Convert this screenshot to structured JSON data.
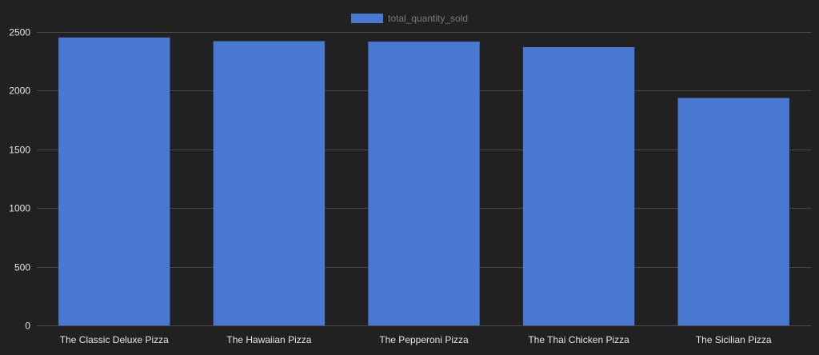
{
  "chart_data": {
    "type": "bar",
    "categories": [
      "The Classic Deluxe Pizza",
      "The Hawaiian Pizza",
      "The Pepperoni Pizza",
      "The Thai Chicken Pizza",
      "The Sicilian Pizza"
    ],
    "series": [
      {
        "name": "total_quantity_sold",
        "values": [
          2453,
          2422,
          2418,
          2371,
          1938
        ],
        "color": "#4878d0"
      }
    ],
    "yticks": [
      0,
      500,
      1000,
      1500,
      2000,
      2500
    ],
    "ylim": [
      0,
      2500
    ],
    "grid": true,
    "legend_position": "top-center"
  },
  "colors": {
    "background": "#212121",
    "gridline": "#4a4a4a",
    "tick_text": "#e6e6e6",
    "legend_text": "#7a7a7a"
  }
}
